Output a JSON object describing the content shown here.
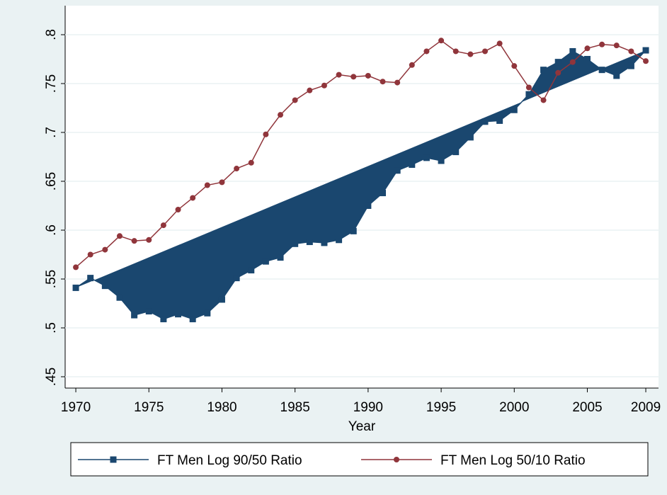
{
  "chart_data": {
    "type": "line",
    "xlabel": "Year",
    "x": [
      1970,
      1971,
      1972,
      1973,
      1974,
      1975,
      1976,
      1977,
      1978,
      1979,
      1980,
      1981,
      1982,
      1983,
      1984,
      1985,
      1986,
      1987,
      1988,
      1989,
      1990,
      1991,
      1992,
      1993,
      1994,
      1995,
      1996,
      1997,
      1998,
      1999,
      2000,
      2001,
      2002,
      2003,
      2004,
      2005,
      2006,
      2007,
      2008,
      2009
    ],
    "series": [
      {
        "name": "FT Men Log 90/50 Ratio",
        "color": "#1a476f",
        "marker": "square",
        "filled": true,
        "values": [
          0.541,
          0.551,
          0.543,
          0.531,
          0.513,
          0.517,
          0.509,
          0.514,
          0.509,
          0.515,
          0.529,
          0.551,
          0.559,
          0.568,
          0.572,
          0.586,
          0.588,
          0.587,
          0.59,
          0.599,
          0.625,
          0.638,
          0.661,
          0.667,
          0.674,
          0.671,
          0.68,
          0.695,
          0.711,
          0.712,
          0.723,
          0.739,
          0.764,
          0.772,
          0.783,
          0.775,
          0.764,
          0.758,
          0.768,
          0.784
        ]
      },
      {
        "name": "FT Men Log 50/10 Ratio",
        "color": "#90353b",
        "marker": "circle",
        "filled": false,
        "values": [
          0.562,
          0.575,
          0.58,
          0.594,
          0.589,
          0.59,
          0.605,
          0.621,
          0.633,
          0.646,
          0.649,
          0.663,
          0.669,
          0.698,
          0.718,
          0.733,
          0.743,
          0.748,
          0.759,
          0.757,
          0.758,
          0.752,
          0.751,
          0.769,
          0.783,
          0.794,
          0.783,
          0.78,
          0.783,
          0.791,
          0.768,
          0.746,
          0.733,
          0.761,
          0.772,
          0.786,
          0.79,
          0.789,
          0.783,
          0.773
        ]
      }
    ],
    "xlim": [
      1969.27,
      2009.87
    ],
    "xticks": [
      1970,
      1975,
      1980,
      1985,
      1990,
      1995,
      2000,
      2005,
      2009
    ],
    "ylim": [
      0.4384,
      0.8297
    ],
    "yticks": [
      {
        "value": 0.45,
        "label": ".45"
      },
      {
        "value": 0.5,
        "label": ".5"
      },
      {
        "value": 0.55,
        "label": ".55"
      },
      {
        "value": 0.6,
        "label": ".6"
      },
      {
        "value": 0.65,
        "label": ".65"
      },
      {
        "value": 0.7,
        "label": ".7"
      },
      {
        "value": 0.75,
        "label": ".75"
      },
      {
        "value": 0.8,
        "label": ".8"
      }
    ],
    "grid": true,
    "legend": "bottom"
  }
}
